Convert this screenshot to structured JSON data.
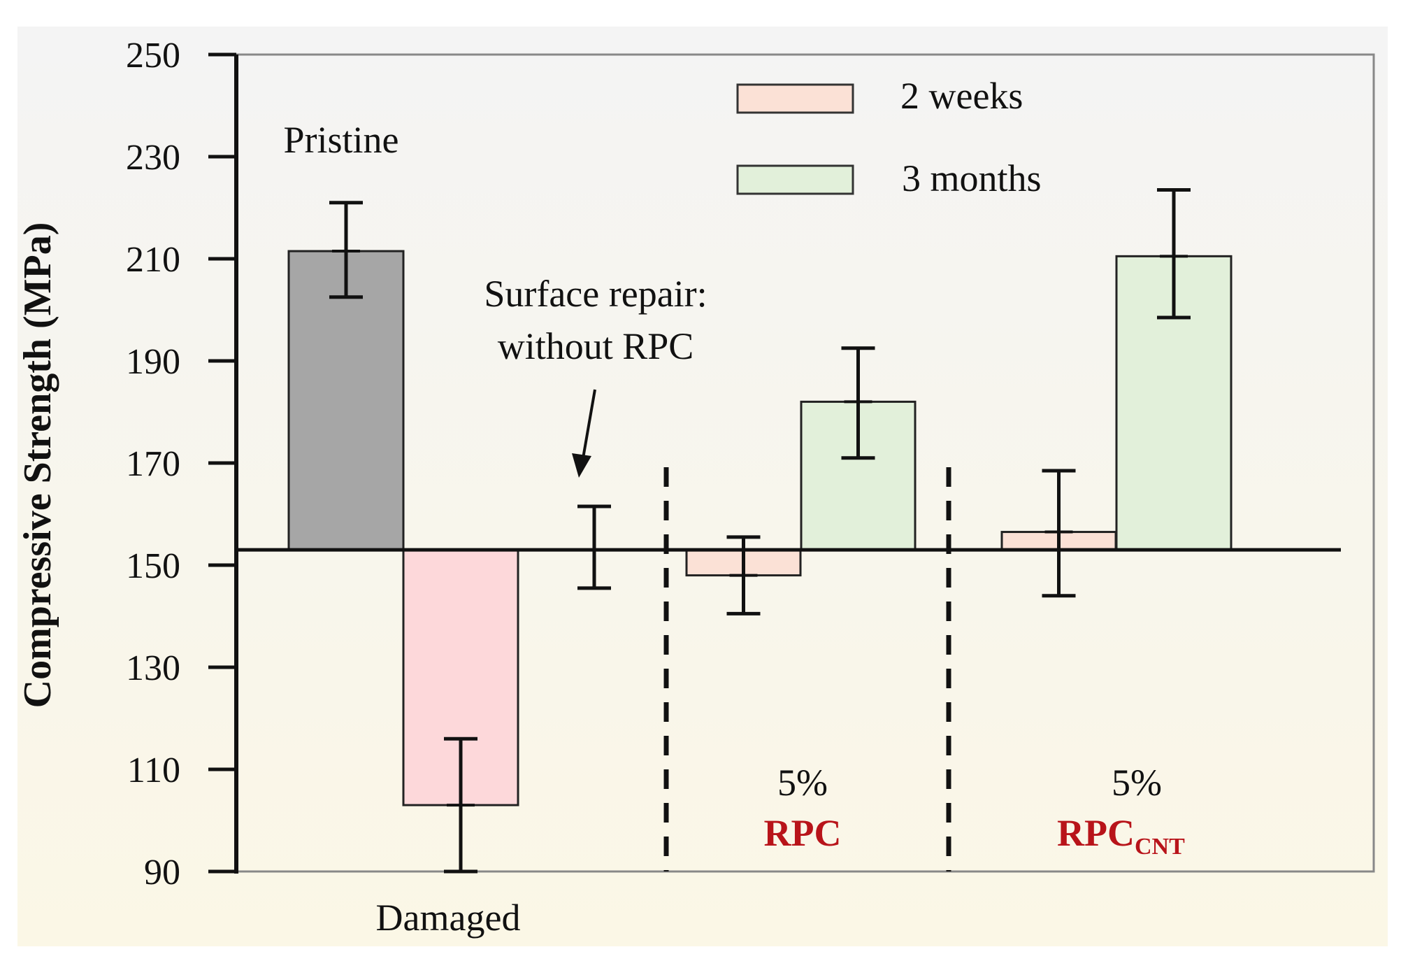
{
  "chart_data": {
    "type": "bar",
    "ylabel": "Compressive Strength  (MPa)",
    "ylim": [
      90,
      250
    ],
    "yticks": [
      90,
      110,
      130,
      150,
      170,
      190,
      210,
      230,
      250
    ],
    "baseline": 153,
    "legend": [
      {
        "label": "2 weeks",
        "color": "#fbe1d6"
      },
      {
        "label": "3 months",
        "color": "#e2f0da"
      }
    ],
    "bars": [
      {
        "label": "Pristine",
        "value": 211.5,
        "err_low": 202.5,
        "err_high": 221,
        "color": "#a6a6a6"
      },
      {
        "label": "Damaged",
        "value": 103,
        "err_low": 90,
        "err_high": 116,
        "color": "#fdd8da"
      },
      {
        "label": "Surface repair: without RPC",
        "value": 153,
        "err_low": 145.5,
        "err_high": 161.5,
        "color": "none"
      },
      {
        "label": "5% RPC - 2 weeks",
        "value": 148,
        "err_low": 140.5,
        "err_high": 155.5,
        "color": "#fbe1d6"
      },
      {
        "label": "5% RPC - 3 months",
        "value": 182,
        "err_low": 171,
        "err_high": 192.5,
        "color": "#e2f0da"
      },
      {
        "label": "5% RPC_CNT - 2 weeks",
        "value": 156.5,
        "err_low": 144,
        "err_high": 168.5,
        "color": "#fbe1d6"
      },
      {
        "label": "5% RPC_CNT - 3 months",
        "value": 210.5,
        "err_low": 198.5,
        "err_high": 223.5,
        "color": "#e2f0da"
      }
    ],
    "annotations": {
      "pristine": "Pristine",
      "damaged": "Damaged",
      "repair_line1": "Surface repair:",
      "repair_line2": "without RPC",
      "rpc_pct": "5%",
      "rpc_label": "RPC",
      "rpccnt_pct": "5%",
      "rpccnt_label": "RPC",
      "rpccnt_sub": "CNT"
    }
  }
}
